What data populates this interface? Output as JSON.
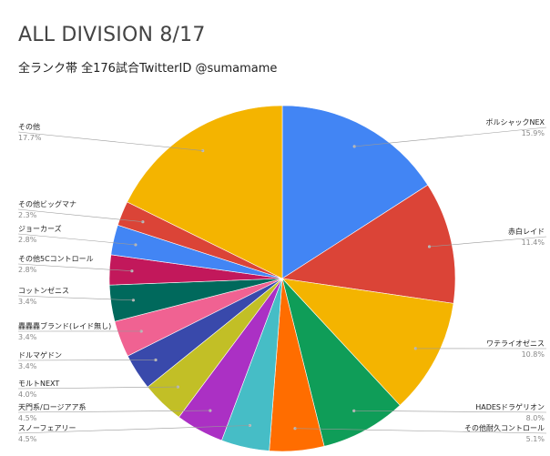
{
  "chart_data": {
    "type": "pie",
    "title": "ALL DIVISION 8/17",
    "subtitle": "全ランク帯 全176試合TwitterID @sumamame",
    "legend": "labels-outside",
    "slices": [
      {
        "label": "ボルシャックNEX",
        "pct_label": "15.9%",
        "value": 15.9,
        "color": "#4285f4",
        "side": "right"
      },
      {
        "label": "赤白レイド",
        "pct_label": "11.4%",
        "value": 11.4,
        "color": "#db4437",
        "side": "right"
      },
      {
        "label": "ワテライオゼニス",
        "pct_label": "10.8%",
        "value": 10.8,
        "color": "#f4b400",
        "side": "right"
      },
      {
        "label": "HADESドラゲリオン",
        "pct_label": "8.0%",
        "value": 8.0,
        "color": "#0f9d58",
        "side": "right"
      },
      {
        "label": "その他耐久コントロール",
        "pct_label": "5.1%",
        "value": 5.1,
        "color": "#ff6d00",
        "side": "right"
      },
      {
        "label": "スノーフェアリー",
        "pct_label": "4.5%",
        "value": 4.5,
        "color": "#46bdc6",
        "side": "left"
      },
      {
        "label": "天門系/ロージアア系",
        "pct_label": "4.5%",
        "value": 4.5,
        "color": "#ab30c4",
        "side": "left"
      },
      {
        "label": "モルトNEXT",
        "pct_label": "4.0%",
        "value": 4.0,
        "color": "#c2bf26",
        "side": "left"
      },
      {
        "label": "ドルマゲドン",
        "pct_label": "3.4%",
        "value": 3.4,
        "color": "#3949ab",
        "side": "left"
      },
      {
        "label": "轟轟轟ブランド(レイド無し)",
        "pct_label": "3.4%",
        "value": 3.4,
        "color": "#f06292",
        "side": "left"
      },
      {
        "label": "コットンゼニス",
        "pct_label": "3.4%",
        "value": 3.4,
        "color": "#00695c",
        "side": "left"
      },
      {
        "label": "その他5Cコントロール",
        "pct_label": "2.8%",
        "value": 2.8,
        "color": "#c2185b",
        "side": "left"
      },
      {
        "label": "ジョーカーズ",
        "pct_label": "2.8%",
        "value": 2.8,
        "color": "#4285f4",
        "side": "left"
      },
      {
        "label": "その他ビッグマナ",
        "pct_label": "2.3%",
        "value": 2.3,
        "color": "#db4437",
        "side": "left"
      },
      {
        "label": "その他",
        "pct_label": "17.7%",
        "value": 17.7,
        "color": "#f4b400",
        "side": "left"
      }
    ]
  }
}
